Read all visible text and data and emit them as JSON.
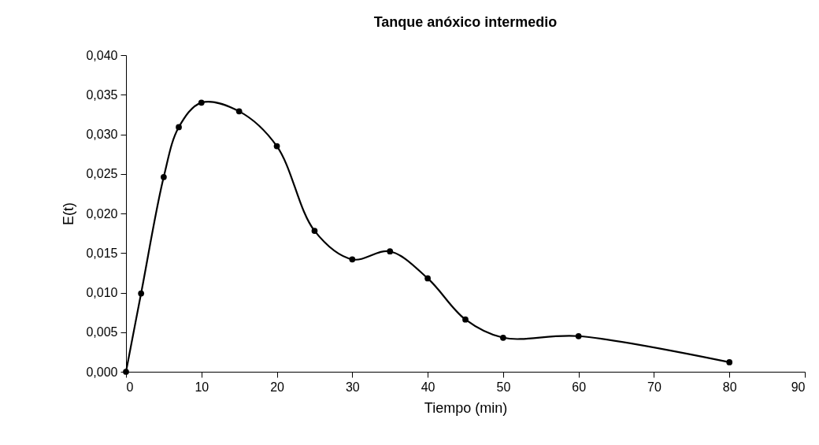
{
  "chart_data": {
    "type": "line",
    "title": "Tanque anóxico intermedio",
    "xlabel": "Tiempo (min)",
    "ylabel": "E(t)",
    "x": [
      0,
      2,
      5,
      7,
      10,
      15,
      20,
      25,
      30,
      35,
      40,
      45,
      50,
      60,
      80
    ],
    "series": [
      {
        "color": "#000000",
        "values": [
          0,
          0.0099,
          0.0246,
          0.0309,
          0.034,
          0.0329,
          0.0285,
          0.0178,
          0.0142,
          0.0152,
          0.0118,
          0.0066,
          0.0043,
          0.0045,
          0.0012
        ]
      }
    ],
    "xlim": [
      0,
      90
    ],
    "xticks": [
      0,
      10,
      20,
      30,
      40,
      50,
      60,
      70,
      80,
      90
    ],
    "ylim": [
      0,
      0.04
    ],
    "yticks": [
      {
        "value": 0,
        "label": "0,000"
      },
      {
        "value": 0.005,
        "label": "0,005"
      },
      {
        "value": 0.01,
        "label": "0,010"
      },
      {
        "value": 0.015,
        "label": "0,015"
      },
      {
        "value": 0.02,
        "label": "0,020"
      },
      {
        "value": 0.025,
        "label": "0,025"
      },
      {
        "value": 0.03,
        "label": "0,030"
      },
      {
        "value": 0.035,
        "label": "0,035"
      },
      {
        "value": 0.04,
        "label": "0,040"
      }
    ],
    "grid": false,
    "marker": "circle",
    "line_style": "solid"
  }
}
